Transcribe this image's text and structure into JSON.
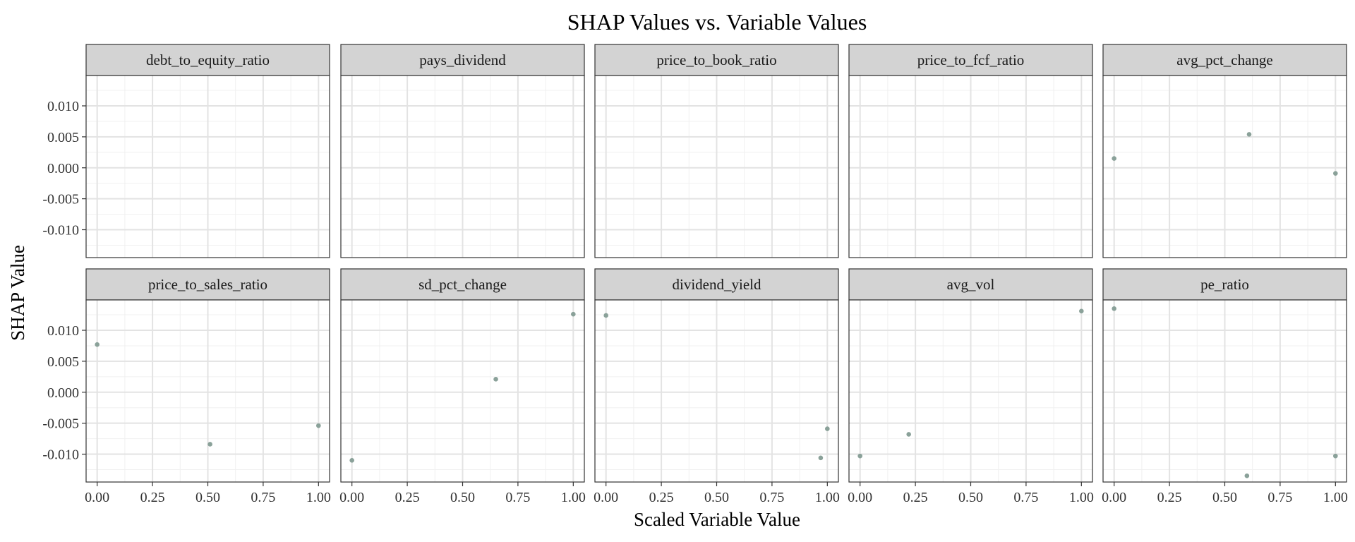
{
  "chart_data": {
    "type": "scatter",
    "title": "SHAP Values vs. Variable Values",
    "xlabel": "Scaled Variable Value",
    "ylabel": "SHAP Value",
    "xlim": [
      -0.05,
      1.05
    ],
    "ylim": [
      -0.0145,
      0.0149
    ],
    "x_ticks": [
      "0.00",
      "0.25",
      "0.50",
      "0.75",
      "1.00"
    ],
    "x_tick_values": [
      0,
      0.25,
      0.5,
      0.75,
      1
    ],
    "y_ticks": [
      "0.010",
      "0.005",
      "0.000",
      "-0.005",
      "-0.010"
    ],
    "y_tick_values": [
      0.01,
      0.005,
      0,
      -0.005,
      -0.01
    ],
    "grid": true,
    "point_color": "#8aa199",
    "strip_color": "#d3d3d3",
    "panels": [
      {
        "name": "debt_to_equity_ratio",
        "points": []
      },
      {
        "name": "pays_dividend",
        "points": []
      },
      {
        "name": "price_to_book_ratio",
        "points": []
      },
      {
        "name": "price_to_fcf_ratio",
        "points": []
      },
      {
        "name": "avg_pct_change",
        "points": [
          [
            0,
            0.0015
          ],
          [
            0.61,
            0.0054
          ],
          [
            1,
            -0.0009
          ]
        ]
      },
      {
        "name": "price_to_sales_ratio",
        "points": [
          [
            0,
            0.0077
          ],
          [
            0.51,
            -0.0084
          ],
          [
            1,
            -0.0054
          ]
        ]
      },
      {
        "name": "sd_pct_change",
        "points": [
          [
            0,
            -0.011
          ],
          [
            0.65,
            0.0021
          ],
          [
            1,
            0.0126
          ]
        ]
      },
      {
        "name": "dividend_yield",
        "points": [
          [
            0,
            0.0124
          ],
          [
            0.97,
            -0.0106
          ],
          [
            1,
            -0.0059
          ]
        ]
      },
      {
        "name": "avg_vol",
        "points": [
          [
            0,
            -0.0103
          ],
          [
            0.22,
            -0.0068
          ],
          [
            1,
            0.0131
          ]
        ]
      },
      {
        "name": "pe_ratio",
        "points": [
          [
            0,
            0.0135
          ],
          [
            0.6,
            -0.0135
          ],
          [
            1,
            -0.0103
          ]
        ]
      }
    ]
  }
}
